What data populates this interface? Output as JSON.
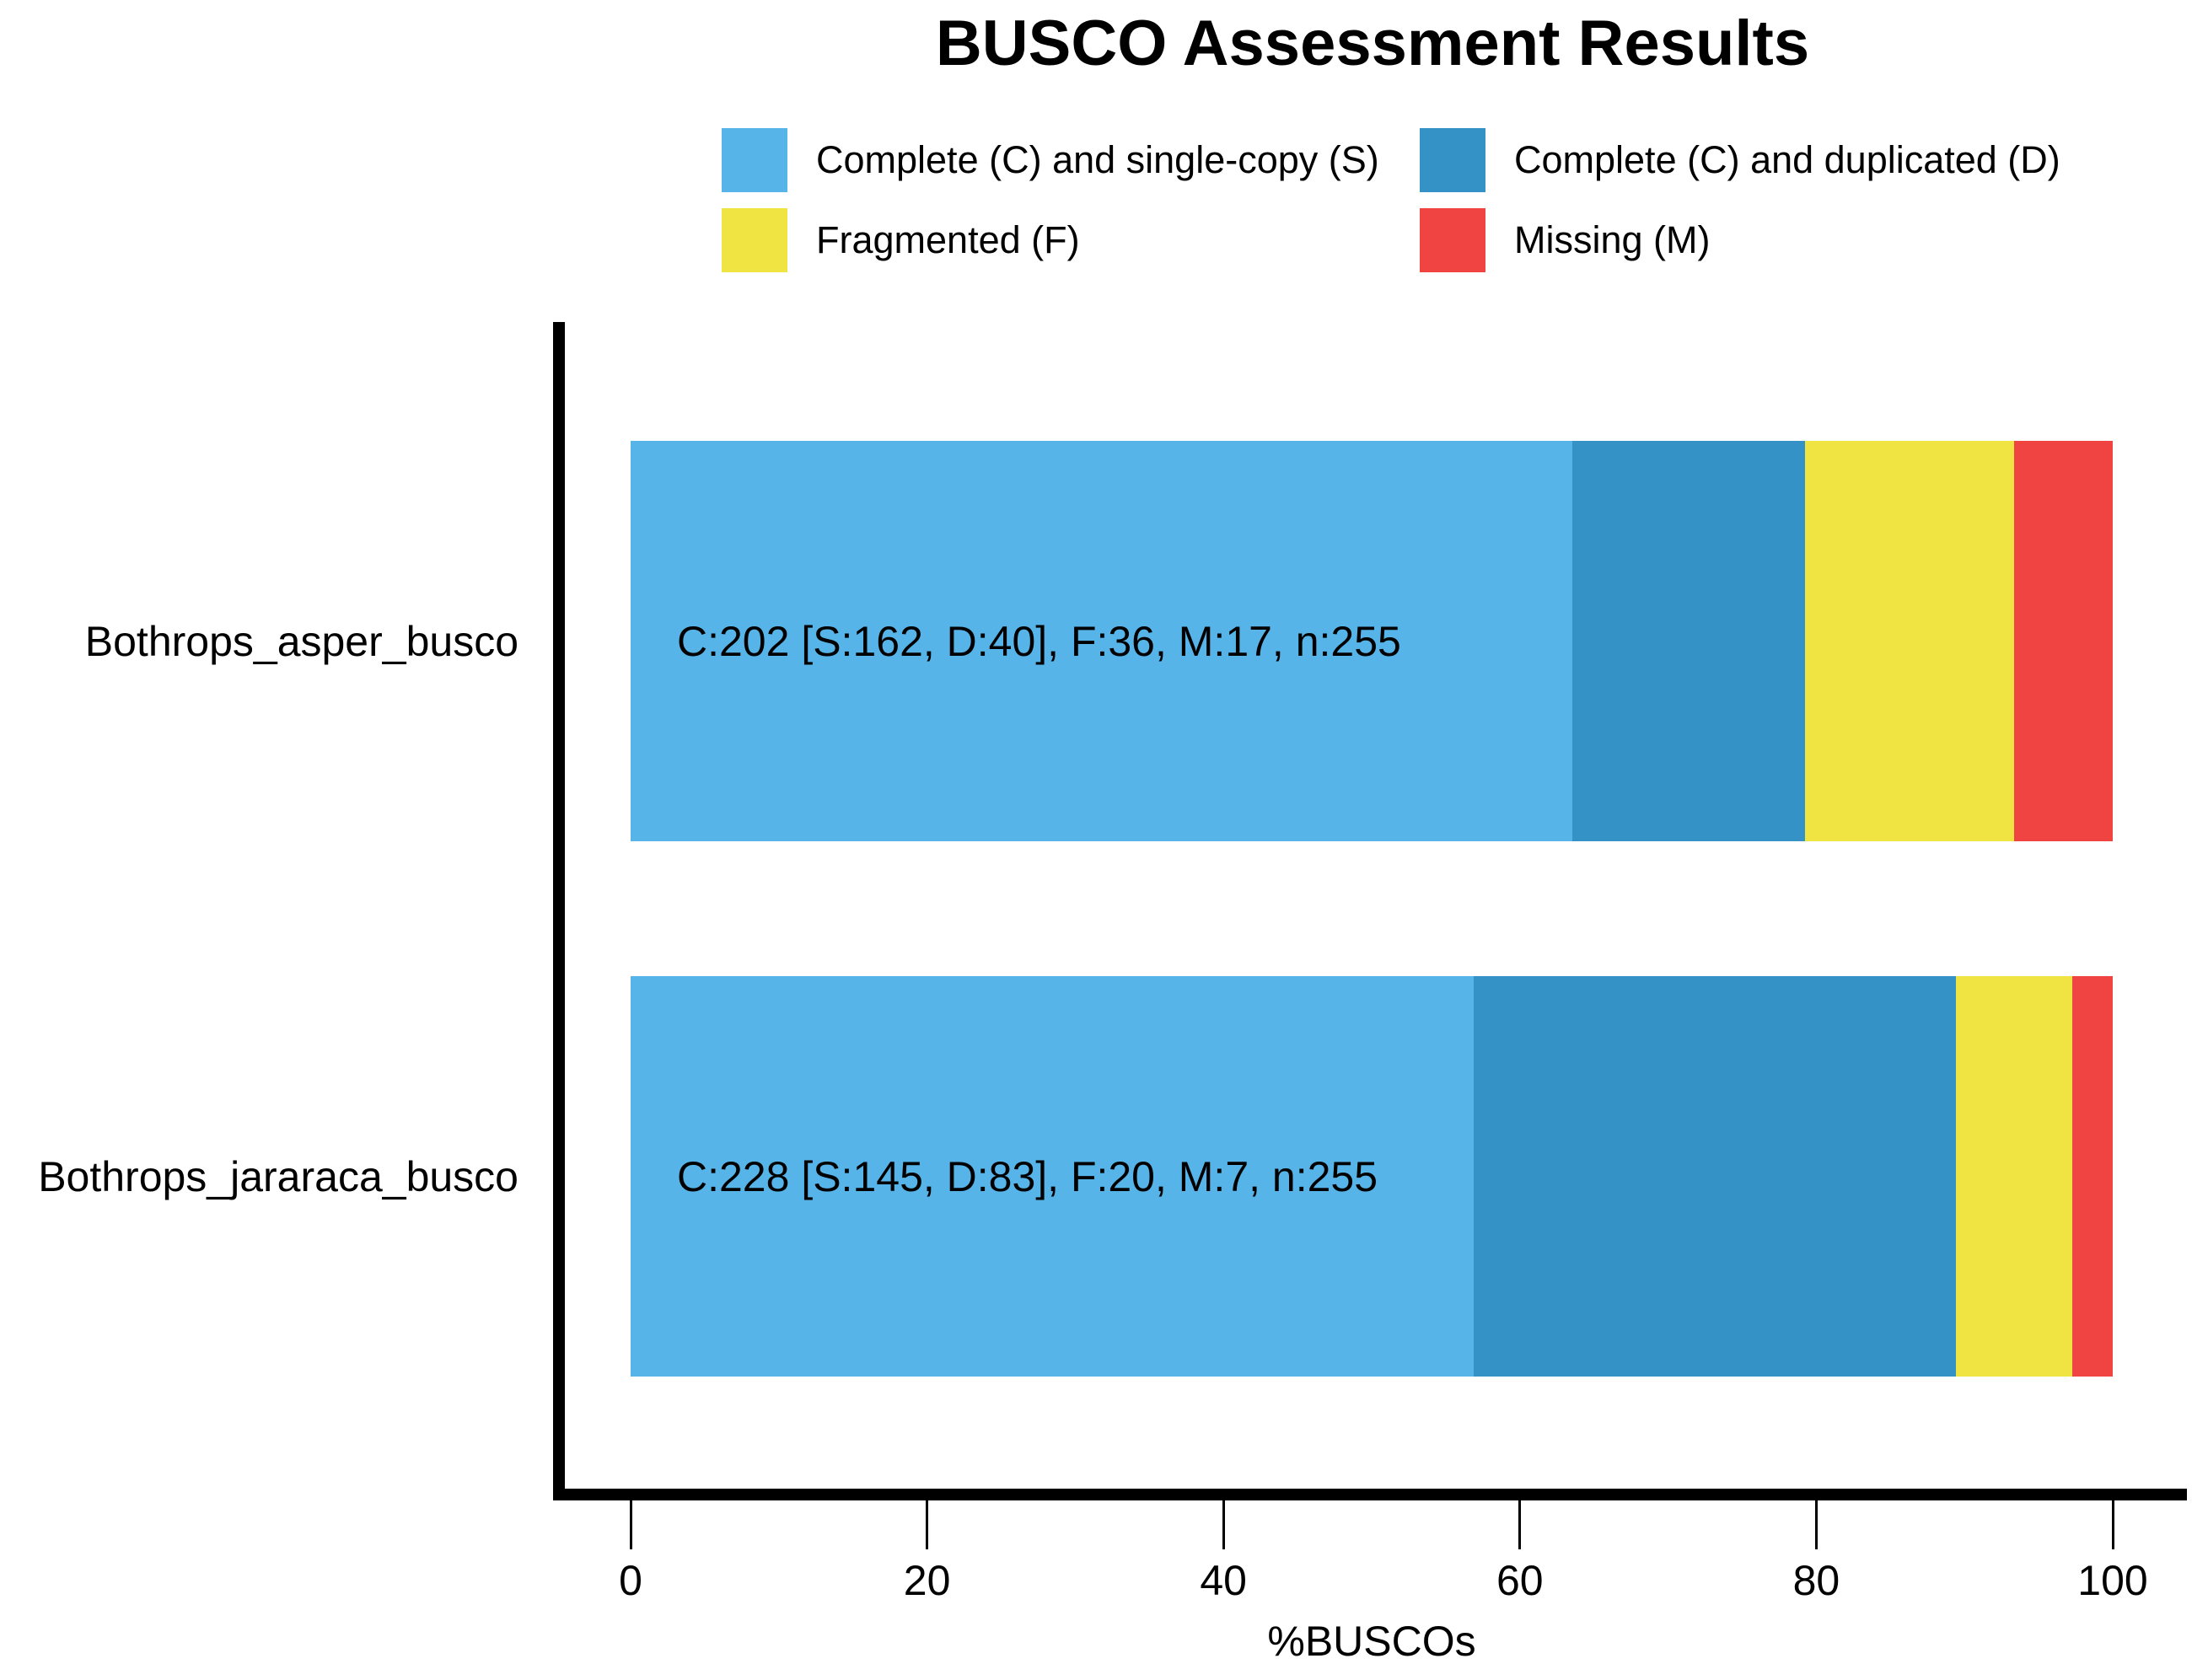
{
  "title": "BUSCO Assessment Results",
  "legend": {
    "items": [
      {
        "label": "Complete (C) and single-copy (S)",
        "color": "#56B4E9"
      },
      {
        "label": "Complete (C) and duplicated (D)",
        "color": "#3492C7"
      },
      {
        "label": "Fragmented (F)",
        "color": "#F0E442"
      },
      {
        "label": "Missing (M)",
        "color": "#F04442"
      }
    ]
  },
  "chart_data": {
    "type": "bar",
    "stacked": true,
    "orientation": "horizontal",
    "title": "BUSCO Assessment Results",
    "xlabel": "%BUSCOs",
    "xlim": [
      0,
      100
    ],
    "x_ticks": [
      0,
      20,
      40,
      60,
      80,
      100
    ],
    "grid": false,
    "legend_position": "top",
    "categories": [
      "Bothrops_asper_busco",
      "Bothrops_jararaca_busco"
    ],
    "n_per_category": [
      255,
      255
    ],
    "series": [
      {
        "name": "Complete (C) and single-copy (S)",
        "color": "#56B4E9",
        "counts": [
          162,
          145
        ],
        "percent": [
          63.5,
          56.9
        ]
      },
      {
        "name": "Complete (C) and duplicated (D)",
        "color": "#3492C7",
        "counts": [
          40,
          83
        ],
        "percent": [
          15.7,
          32.5
        ]
      },
      {
        "name": "Fragmented (F)",
        "color": "#F0E442",
        "counts": [
          36,
          20
        ],
        "percent": [
          14.1,
          7.8
        ]
      },
      {
        "name": "Missing (M)",
        "color": "#F04442",
        "counts": [
          17,
          7
        ],
        "percent": [
          6.7,
          2.7
        ]
      }
    ],
    "bar_labels": [
      "C:202 [S:162, D:40], F:36, M:17, n:255",
      "C:228 [S:145, D:83], F:20, M:7, n:255"
    ]
  }
}
